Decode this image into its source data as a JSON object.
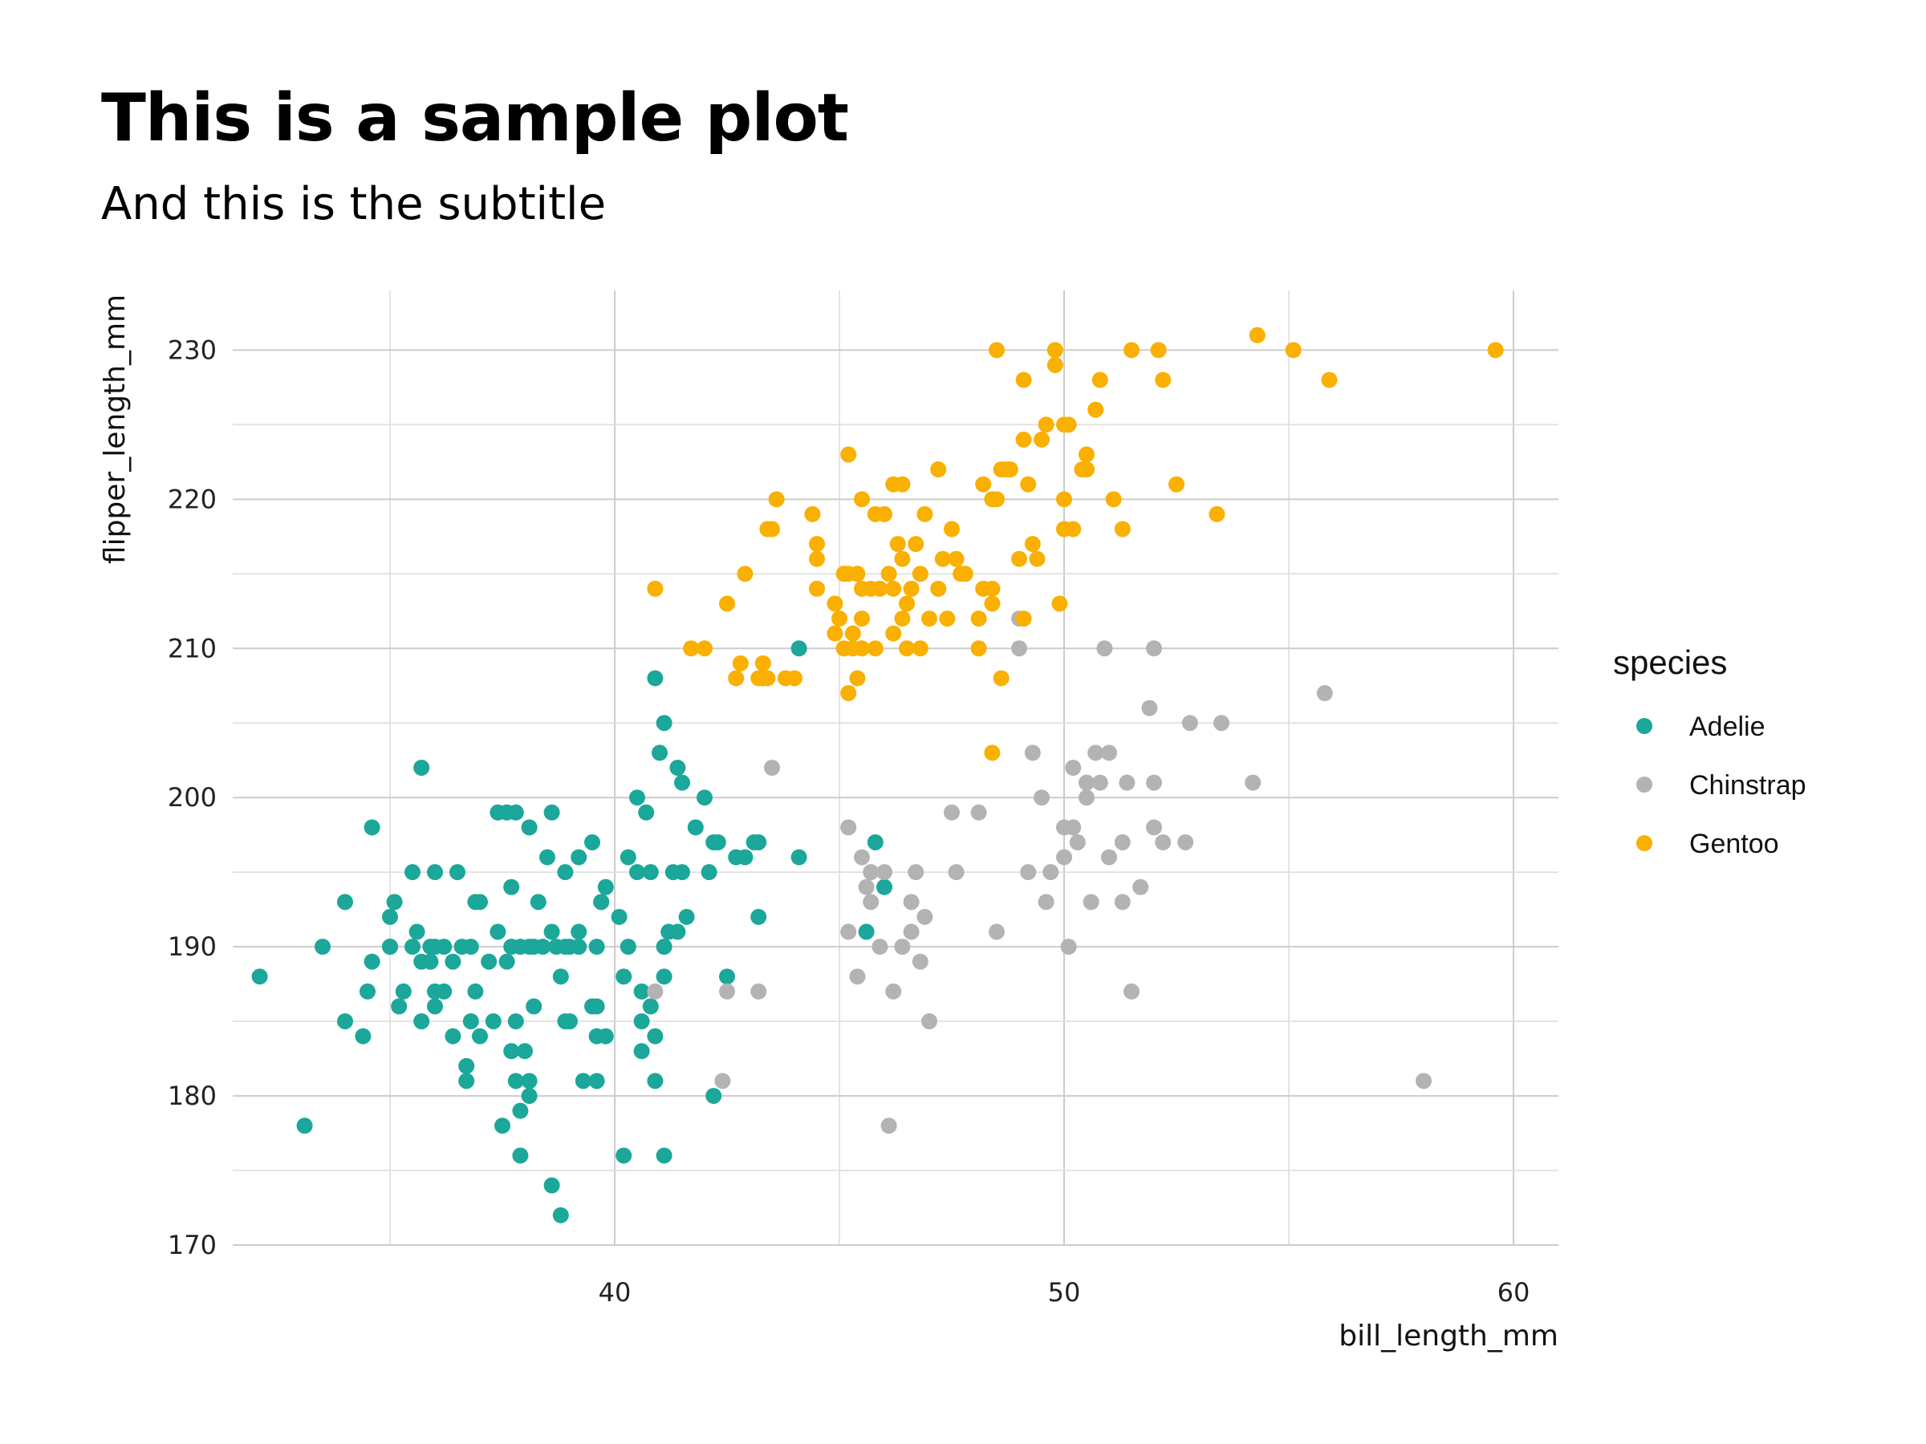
{
  "title": "This is a sample plot",
  "subtitle": "And this is the subtitle",
  "chart_data": {
    "type": "scatter",
    "title": "This is a sample plot",
    "subtitle": "And this is the subtitle",
    "xlabel": "bill_length_mm",
    "ylabel": "flipper_length_mm",
    "xlim": [
      31.5,
      61
    ],
    "ylim": [
      170,
      234
    ],
    "x_ticks": [
      40,
      50,
      60
    ],
    "y_ticks": [
      170,
      180,
      190,
      200,
      210,
      220,
      230
    ],
    "grid": true,
    "legend_title": "species",
    "legend_position": "right",
    "series": [
      {
        "name": "Adelie",
        "color": "#1BA799",
        "points": [
          [
            32.1,
            188
          ],
          [
            33.1,
            178
          ],
          [
            33.5,
            190
          ],
          [
            34.0,
            193
          ],
          [
            34.0,
            185
          ],
          [
            34.4,
            184
          ],
          [
            34.5,
            187
          ],
          [
            34.6,
            198
          ],
          [
            34.6,
            189
          ],
          [
            35.0,
            192
          ],
          [
            35.0,
            190
          ],
          [
            35.1,
            193
          ],
          [
            35.2,
            186
          ],
          [
            35.3,
            187
          ],
          [
            35.5,
            195
          ],
          [
            35.5,
            190
          ],
          [
            35.6,
            191
          ],
          [
            35.7,
            202
          ],
          [
            35.7,
            185
          ],
          [
            35.7,
            189
          ],
          [
            35.9,
            190
          ],
          [
            35.9,
            189
          ],
          [
            36.0,
            186
          ],
          [
            36.0,
            195
          ],
          [
            36.0,
            190
          ],
          [
            36.0,
            187
          ],
          [
            36.2,
            187
          ],
          [
            36.2,
            190
          ],
          [
            36.4,
            184
          ],
          [
            36.5,
            195
          ],
          [
            36.6,
            190
          ],
          [
            36.7,
            182
          ],
          [
            36.7,
            181
          ],
          [
            36.8,
            185
          ],
          [
            36.9,
            193
          ],
          [
            36.9,
            187
          ],
          [
            37.0,
            193
          ],
          [
            37.0,
            184
          ],
          [
            37.2,
            189
          ],
          [
            37.3,
            185
          ],
          [
            37.5,
            178
          ],
          [
            37.6,
            199
          ],
          [
            37.7,
            183
          ],
          [
            37.7,
            194
          ],
          [
            37.8,
            199
          ],
          [
            37.8,
            181
          ],
          [
            37.8,
            185
          ],
          [
            37.9,
            179
          ],
          [
            37.9,
            176
          ],
          [
            38.0,
            183
          ],
          [
            38.1,
            198
          ],
          [
            38.1,
            181
          ],
          [
            38.1,
            180
          ],
          [
            38.2,
            190
          ],
          [
            38.2,
            186
          ],
          [
            38.3,
            193
          ],
          [
            38.6,
            191
          ],
          [
            38.6,
            174
          ],
          [
            38.6,
            199
          ],
          [
            38.8,
            172
          ],
          [
            38.8,
            188
          ],
          [
            38.9,
            195
          ],
          [
            39.0,
            190
          ],
          [
            39.0,
            185
          ],
          [
            39.2,
            191
          ],
          [
            39.2,
            190
          ],
          [
            39.5,
            186
          ],
          [
            39.6,
            181
          ],
          [
            39.6,
            186
          ],
          [
            39.7,
            193
          ],
          [
            39.7,
            193
          ],
          [
            39.8,
            184
          ],
          [
            40.1,
            192
          ],
          [
            40.2,
            176
          ],
          [
            40.3,
            196
          ],
          [
            40.6,
            183
          ],
          [
            40.6,
            187
          ],
          [
            40.8,
            195
          ],
          [
            40.9,
            184
          ],
          [
            40.9,
            181
          ],
          [
            41.1,
            190
          ],
          [
            41.1,
            188
          ],
          [
            41.1,
            176
          ],
          [
            41.3,
            195
          ],
          [
            41.4,
            191
          ],
          [
            41.5,
            201
          ],
          [
            41.6,
            192
          ],
          [
            41.8,
            198
          ],
          [
            42.0,
            200
          ],
          [
            42.1,
            195
          ],
          [
            42.2,
            180
          ],
          [
            42.3,
            197
          ],
          [
            42.5,
            188
          ],
          [
            42.7,
            196
          ],
          [
            42.9,
            196
          ],
          [
            43.1,
            197
          ],
          [
            43.2,
            192
          ],
          [
            44.1,
            196
          ],
          [
            44.1,
            210
          ],
          [
            45.6,
            191
          ],
          [
            45.8,
            197
          ],
          [
            46.0,
            194
          ],
          [
            40.7,
            199
          ],
          [
            40.5,
            200
          ],
          [
            41.1,
            205
          ],
          [
            41.0,
            203
          ],
          [
            40.9,
            208
          ],
          [
            39.5,
            197
          ],
          [
            39.2,
            196
          ],
          [
            38.5,
            196
          ],
          [
            37.6,
            189
          ],
          [
            37.9,
            190
          ],
          [
            38.4,
            190
          ],
          [
            38.9,
            190
          ],
          [
            39.6,
            190
          ],
          [
            40.2,
            188
          ],
          [
            40.5,
            195
          ],
          [
            39.6,
            184
          ],
          [
            37.4,
            199
          ],
          [
            38.9,
            185
          ],
          [
            39.3,
            181
          ],
          [
            40.8,
            186
          ],
          [
            41.5,
            195
          ],
          [
            40.6,
            185
          ],
          [
            42.2,
            197
          ],
          [
            43.2,
            197
          ],
          [
            41.4,
            202
          ],
          [
            38.7,
            190
          ],
          [
            37.7,
            190
          ],
          [
            38.1,
            190
          ],
          [
            36.4,
            189
          ],
          [
            35.0,
            190
          ],
          [
            36.8,
            190
          ],
          [
            40.3,
            190
          ],
          [
            39.8,
            194
          ],
          [
            41.2,
            191
          ],
          [
            37.4,
            191
          ]
        ]
      },
      {
        "name": "Chinstrap",
        "color": "#B3B3B3",
        "points": [
          [
            40.9,
            187
          ],
          [
            42.4,
            181
          ],
          [
            42.5,
            187
          ],
          [
            43.2,
            187
          ],
          [
            43.5,
            202
          ],
          [
            45.2,
            198
          ],
          [
            45.2,
            191
          ],
          [
            45.4,
            188
          ],
          [
            45.5,
            196
          ],
          [
            45.6,
            194
          ],
          [
            45.7,
            195
          ],
          [
            45.7,
            193
          ],
          [
            45.9,
            190
          ],
          [
            46.0,
            195
          ],
          [
            46.1,
            178
          ],
          [
            46.2,
            187
          ],
          [
            46.4,
            190
          ],
          [
            46.6,
            191
          ],
          [
            46.6,
            193
          ],
          [
            46.7,
            195
          ],
          [
            46.8,
            189
          ],
          [
            46.9,
            192
          ],
          [
            47.0,
            185
          ],
          [
            47.5,
            199
          ],
          [
            47.6,
            195
          ],
          [
            48.1,
            199
          ],
          [
            48.5,
            191
          ],
          [
            49.0,
            210
          ],
          [
            49.0,
            212
          ],
          [
            49.2,
            195
          ],
          [
            49.3,
            203
          ],
          [
            49.5,
            200
          ],
          [
            49.6,
            193
          ],
          [
            49.7,
            195
          ],
          [
            50.0,
            198
          ],
          [
            50.0,
            196
          ],
          [
            50.1,
            190
          ],
          [
            50.2,
            198
          ],
          [
            50.2,
            202
          ],
          [
            50.3,
            197
          ],
          [
            50.5,
            200
          ],
          [
            50.5,
            201
          ],
          [
            50.6,
            193
          ],
          [
            50.7,
            203
          ],
          [
            50.8,
            201
          ],
          [
            50.9,
            210
          ],
          [
            51.0,
            203
          ],
          [
            51.3,
            197
          ],
          [
            51.3,
            193
          ],
          [
            51.4,
            201
          ],
          [
            51.5,
            187
          ],
          [
            51.7,
            194
          ],
          [
            51.9,
            206
          ],
          [
            52.0,
            210
          ],
          [
            52.0,
            201
          ],
          [
            52.2,
            197
          ],
          [
            52.7,
            197
          ],
          [
            52.8,
            205
          ],
          [
            53.5,
            205
          ],
          [
            54.2,
            201
          ],
          [
            55.8,
            207
          ],
          [
            58.0,
            181
          ],
          [
            52.0,
            198
          ],
          [
            51.0,
            196
          ]
        ]
      },
      {
        "name": "Gentoo",
        "color": "#FAB000",
        "points": [
          [
            40.9,
            214
          ],
          [
            41.7,
            210
          ],
          [
            42.0,
            210
          ],
          [
            42.5,
            213
          ],
          [
            42.7,
            208
          ],
          [
            42.8,
            209
          ],
          [
            42.9,
            215
          ],
          [
            43.2,
            208
          ],
          [
            43.3,
            209
          ],
          [
            43.4,
            208
          ],
          [
            43.5,
            218
          ],
          [
            43.6,
            220
          ],
          [
            43.8,
            208
          ],
          [
            44.0,
            208
          ],
          [
            44.4,
            219
          ],
          [
            44.5,
            217
          ],
          [
            44.5,
            216
          ],
          [
            44.5,
            214
          ],
          [
            44.9,
            213
          ],
          [
            45.0,
            212
          ],
          [
            45.1,
            215
          ],
          [
            45.1,
            210
          ],
          [
            45.2,
            207
          ],
          [
            45.2,
            223
          ],
          [
            45.2,
            215
          ],
          [
            45.3,
            211
          ],
          [
            45.3,
            210
          ],
          [
            45.4,
            208
          ],
          [
            45.5,
            210
          ],
          [
            45.5,
            212
          ],
          [
            45.5,
            220
          ],
          [
            45.7,
            214
          ],
          [
            45.8,
            210
          ],
          [
            45.8,
            219
          ],
          [
            46.1,
            215
          ],
          [
            46.2,
            221
          ],
          [
            46.2,
            214
          ],
          [
            46.2,
            211
          ],
          [
            46.3,
            217
          ],
          [
            46.4,
            212
          ],
          [
            46.4,
            221
          ],
          [
            46.4,
            216
          ],
          [
            46.5,
            213
          ],
          [
            46.5,
            210
          ],
          [
            46.6,
            214
          ],
          [
            46.7,
            217
          ],
          [
            46.8,
            215
          ],
          [
            46.8,
            210
          ],
          [
            46.9,
            219
          ],
          [
            47.2,
            222
          ],
          [
            47.3,
            216
          ],
          [
            47.4,
            212
          ],
          [
            47.5,
            218
          ],
          [
            47.6,
            216
          ],
          [
            47.7,
            215
          ],
          [
            48.1,
            210
          ],
          [
            48.1,
            212
          ],
          [
            48.2,
            221
          ],
          [
            48.4,
            213
          ],
          [
            48.4,
            214
          ],
          [
            48.5,
            220
          ],
          [
            48.5,
            230
          ],
          [
            48.6,
            222
          ],
          [
            48.6,
            208
          ],
          [
            48.7,
            222
          ],
          [
            48.8,
            222
          ],
          [
            49.0,
            216
          ],
          [
            49.1,
            228
          ],
          [
            49.1,
            212
          ],
          [
            49.2,
            221
          ],
          [
            49.3,
            217
          ],
          [
            49.4,
            216
          ],
          [
            49.5,
            224
          ],
          [
            49.6,
            225
          ],
          [
            49.8,
            229
          ],
          [
            49.8,
            230
          ],
          [
            50.0,
            218
          ],
          [
            50.0,
            220
          ],
          [
            50.1,
            225
          ],
          [
            50.2,
            218
          ],
          [
            50.4,
            222
          ],
          [
            50.5,
            222
          ],
          [
            50.7,
            226
          ],
          [
            50.8,
            228
          ],
          [
            51.1,
            220
          ],
          [
            51.3,
            218
          ],
          [
            51.5,
            230
          ],
          [
            52.1,
            230
          ],
          [
            52.2,
            228
          ],
          [
            52.5,
            221
          ],
          [
            53.4,
            219
          ],
          [
            54.3,
            231
          ],
          [
            55.1,
            230
          ],
          [
            55.9,
            228
          ],
          [
            59.6,
            230
          ],
          [
            48.4,
            203
          ],
          [
            45.5,
            214
          ],
          [
            47.8,
            215
          ],
          [
            46.0,
            219
          ],
          [
            44.9,
            211
          ],
          [
            48.2,
            214
          ],
          [
            45.4,
            215
          ],
          [
            49.9,
            213
          ],
          [
            43.4,
            218
          ],
          [
            50.0,
            225
          ],
          [
            49.1,
            224
          ],
          [
            47.0,
            212
          ],
          [
            45.9,
            214
          ],
          [
            43.3,
            208
          ],
          [
            50.5,
            223
          ],
          [
            48.4,
            220
          ],
          [
            47.2,
            214
          ]
        ]
      }
    ]
  }
}
